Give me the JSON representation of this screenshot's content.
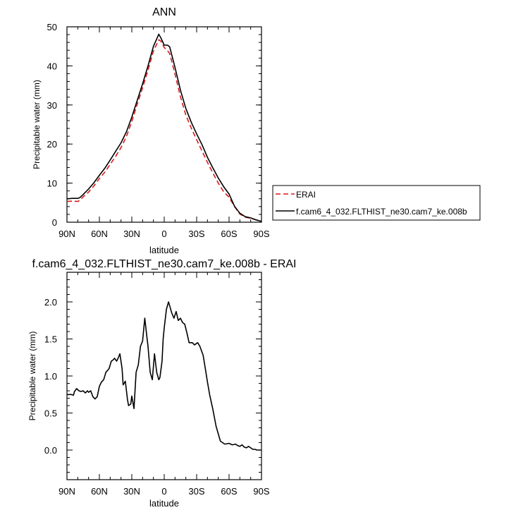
{
  "chart_data": [
    {
      "type": "line",
      "title": "ANN",
      "xlabel": "latitude",
      "ylabel": "Precipitable water (mm)",
      "x_reversed": true,
      "xlim": [
        90,
        -90
      ],
      "ylim": [
        0,
        50
      ],
      "xticks": [
        {
          "value": 90,
          "label": "90N"
        },
        {
          "value": 60,
          "label": "60N"
        },
        {
          "value": 30,
          "label": "30N"
        },
        {
          "value": 0,
          "label": "0"
        },
        {
          "value": -30,
          "label": "30S"
        },
        {
          "value": -60,
          "label": "60S"
        },
        {
          "value": -90,
          "label": "90S"
        }
      ],
      "yticks": [
        {
          "value": 0,
          "label": "0"
        },
        {
          "value": 10,
          "label": "10"
        },
        {
          "value": 20,
          "label": "20"
        },
        {
          "value": 30,
          "label": "30"
        },
        {
          "value": 40,
          "label": "40"
        },
        {
          "value": 50,
          "label": "50"
        }
      ],
      "grid": false,
      "legend_position": "right",
      "series": [
        {
          "name": "ERAI",
          "color": "#d7191c",
          "dash": "dashed",
          "x": [
            90,
            85,
            80,
            78,
            75,
            70,
            65,
            60,
            55,
            50,
            45,
            40,
            35,
            30,
            25,
            20,
            15,
            10,
            5,
            3,
            0,
            -3,
            -5,
            -10,
            -15,
            -20,
            -25,
            -30,
            -35,
            -40,
            -45,
            -50,
            -55,
            -60,
            -65,
            -70,
            -75,
            -80,
            -85,
            -90
          ],
          "y": [
            5.3,
            5.4,
            5.3,
            5.6,
            6.5,
            7.7,
            9.3,
            11.2,
            12.8,
            14.8,
            16.8,
            19.1,
            21.9,
            25.8,
            30.2,
            34.4,
            38.9,
            43.8,
            46.7,
            46.3,
            44.7,
            43.9,
            43.2,
            37.9,
            32.1,
            27.4,
            24.1,
            21.1,
            18.2,
            15.3,
            12.6,
            10.0,
            7.8,
            6.4,
            4.0,
            2.1,
            1.3,
            1.0,
            0.6,
            0.2
          ]
        },
        {
          "name": "f.cam6_4_032.FLTHIST_ne30.cam7_ke.008b",
          "color": "#000000",
          "dash": "solid",
          "x": [
            90,
            85,
            80,
            78,
            75,
            70,
            65,
            60,
            55,
            50,
            45,
            40,
            35,
            30,
            25,
            20,
            15,
            10,
            5,
            3,
            0,
            -3,
            -5,
            -10,
            -15,
            -20,
            -25,
            -30,
            -35,
            -40,
            -45,
            -50,
            -55,
            -60,
            -65,
            -70,
            -75,
            -80,
            -85,
            -90
          ],
          "y": [
            6.0,
            6.1,
            6.1,
            6.3,
            7.1,
            8.5,
            10.1,
            12.0,
            13.8,
            15.9,
            18.1,
            20.3,
            23.1,
            26.9,
            31.2,
            35.4,
            40.0,
            45.0,
            48.1,
            47.1,
            45.3,
            45.3,
            44.9,
            39.6,
            33.8,
            29.1,
            25.6,
            22.6,
            19.8,
            16.6,
            13.9,
            11.3,
            9.1,
            7.2,
            4.1,
            2.3,
            1.4,
            1.1,
            0.6,
            0.2
          ]
        }
      ]
    },
    {
      "type": "line",
      "title": "f.cam6_4_032.FLTHIST_ne30.cam7_ke.008b - ERAI",
      "xlabel": "latitude",
      "ylabel": "Precipitable water (mm)",
      "x_reversed": true,
      "xlim": [
        90,
        -90
      ],
      "ylim": [
        -0.4,
        2.4
      ],
      "xticks": [
        {
          "value": 90,
          "label": "90N"
        },
        {
          "value": 60,
          "label": "60N"
        },
        {
          "value": 30,
          "label": "30N"
        },
        {
          "value": 0,
          "label": "0"
        },
        {
          "value": -30,
          "label": "30S"
        },
        {
          "value": -60,
          "label": "60S"
        },
        {
          "value": -90,
          "label": "90S"
        }
      ],
      "yticks": [
        {
          "value": 0,
          "label": "0.0"
        },
        {
          "value": 0.5,
          "label": "0.5"
        },
        {
          "value": 1,
          "label": "1.0"
        },
        {
          "value": 1.5,
          "label": "1.5"
        },
        {
          "value": 2,
          "label": "2.0"
        }
      ],
      "grid": false,
      "series": [
        {
          "color": "#000000",
          "dash": "solid",
          "x": [
            90,
            86,
            84,
            83,
            81,
            79,
            77,
            75,
            73,
            71,
            70,
            68,
            66,
            64,
            62,
            60,
            58,
            56,
            54,
            51,
            49,
            47,
            46,
            44,
            43,
            41,
            39,
            38,
            36,
            34,
            33,
            31,
            30,
            28,
            26,
            24,
            22,
            20,
            18,
            16,
            15,
            13,
            11,
            9,
            7,
            6,
            5,
            4,
            2,
            1,
            0,
            -2,
            -4,
            -5,
            -7,
            -9,
            -11,
            -13,
            -15,
            -17,
            -19,
            -21,
            -23,
            -26,
            -28,
            -31,
            -33,
            -36,
            -38,
            -40,
            -42,
            -45,
            -48,
            -52,
            -56,
            -60,
            -63,
            -66,
            -68,
            -70,
            -72,
            -74,
            -76,
            -78,
            -80,
            -82,
            -84,
            -86,
            -88,
            -90
          ],
          "y": [
            0.75,
            0.75,
            0.74,
            0.79,
            0.83,
            0.8,
            0.79,
            0.8,
            0.77,
            0.8,
            0.78,
            0.8,
            0.72,
            0.69,
            0.72,
            0.86,
            0.92,
            0.95,
            1.05,
            1.1,
            1.2,
            1.22,
            1.24,
            1.2,
            1.23,
            1.3,
            1.1,
            0.88,
            0.93,
            0.68,
            0.6,
            0.62,
            0.73,
            0.56,
            1.05,
            1.15,
            1.4,
            1.47,
            1.78,
            1.52,
            1.4,
            1.05,
            0.95,
            1.3,
            1.05,
            1.0,
            0.95,
            0.98,
            1.2,
            1.5,
            1.65,
            1.9,
            2.0,
            1.95,
            1.85,
            1.78,
            1.87,
            1.75,
            1.78,
            1.72,
            1.7,
            1.58,
            1.45,
            1.45,
            1.42,
            1.45,
            1.4,
            1.28,
            1.1,
            0.92,
            0.75,
            0.55,
            0.32,
            0.12,
            0.08,
            0.09,
            0.07,
            0.08,
            0.06,
            0.05,
            0.07,
            0.04,
            0.03,
            0.05,
            0.03,
            0.01,
            0.01,
            0.0,
            0.0,
            0.0
          ]
        }
      ]
    }
  ]
}
